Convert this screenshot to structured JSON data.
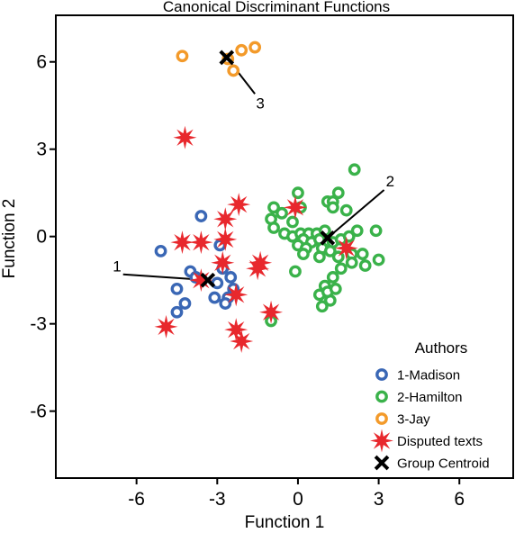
{
  "chart_data": {
    "type": "scatter",
    "title": "Canonical Discriminant Functions",
    "xlabel": "Function 1",
    "ylabel": "Function 2",
    "xlim": [
      -9,
      8
    ],
    "ylim": [
      -8.3,
      7.6
    ],
    "xticks": [
      -6,
      -3,
      0,
      3,
      6
    ],
    "yticks": [
      -6,
      -3,
      0,
      3,
      6
    ],
    "grid": false,
    "legend": {
      "title": "Authors",
      "position": "bottom-right",
      "entries": [
        {
          "key": "madison",
          "label": "1-Madison",
          "marker": "ring",
          "color": "#3a67b5"
        },
        {
          "key": "hamilton",
          "label": "2-Hamilton",
          "marker": "ring",
          "color": "#3ab24a"
        },
        {
          "key": "jay",
          "label": "3-Jay",
          "marker": "ring",
          "color": "#f39a2a"
        },
        {
          "key": "disputed",
          "label": "Disputed texts",
          "marker": "star",
          "color": "#e8282d"
        },
        {
          "key": "centroid",
          "label": "Group Centroid",
          "marker": "x",
          "color": "#000000"
        }
      ]
    },
    "series": [
      {
        "name": "1-Madison",
        "key": "madison",
        "marker": "ring",
        "color": "#3a67b5",
        "points": [
          [
            -5.1,
            -0.5
          ],
          [
            -4.0,
            -1.2
          ],
          [
            -3.8,
            -1.4
          ],
          [
            -3.6,
            0.7
          ],
          [
            -2.9,
            -0.3
          ],
          [
            -2.8,
            -1.1
          ],
          [
            -3.0,
            -1.6
          ],
          [
            -2.5,
            -1.4
          ],
          [
            -2.4,
            -1.8
          ],
          [
            -2.6,
            -2.1
          ],
          [
            -2.7,
            -2.3
          ],
          [
            -3.1,
            -2.1
          ],
          [
            -4.5,
            -1.8
          ],
          [
            -4.5,
            -2.6
          ],
          [
            -4.2,
            -2.3
          ]
        ]
      },
      {
        "name": "2-Hamilton",
        "key": "hamilton",
        "marker": "ring",
        "color": "#3ab24a",
        "points": [
          [
            -0.9,
            1.0
          ],
          [
            -0.6,
            0.8
          ],
          [
            0.0,
            1.5
          ],
          [
            0.1,
            1.0
          ],
          [
            1.1,
            1.2
          ],
          [
            1.3,
            1.2
          ],
          [
            1.5,
            1.5
          ],
          [
            2.1,
            2.3
          ],
          [
            1.3,
            1.0
          ],
          [
            1.8,
            0.9
          ],
          [
            -0.2,
            0.5
          ],
          [
            -1.0,
            0.6
          ],
          [
            -0.9,
            0.3
          ],
          [
            -0.5,
            0.1
          ],
          [
            -0.2,
            0.0
          ],
          [
            0.1,
            0.1
          ],
          [
            0.4,
            0.1
          ],
          [
            0.7,
            0.1
          ],
          [
            1.0,
            0.2
          ],
          [
            0.2,
            -0.1
          ],
          [
            0.5,
            -0.2
          ],
          [
            0.8,
            -0.1
          ],
          [
            1.3,
            -0.2
          ],
          [
            1.6,
            -0.1
          ],
          [
            1.9,
            0.0
          ],
          [
            2.2,
            0.2
          ],
          [
            2.9,
            0.2
          ],
          [
            0.0,
            -0.3
          ],
          [
            0.3,
            -0.4
          ],
          [
            0.9,
            -0.4
          ],
          [
            1.2,
            -0.5
          ],
          [
            1.5,
            -0.7
          ],
          [
            2.0,
            -0.6
          ],
          [
            2.4,
            -0.6
          ],
          [
            2.5,
            -1.0
          ],
          [
            3.0,
            -0.8
          ],
          [
            2.0,
            -0.9
          ],
          [
            1.6,
            -1.1
          ],
          [
            1.3,
            -1.4
          ],
          [
            1.0,
            -1.7
          ],
          [
            0.8,
            -2.0
          ],
          [
            0.9,
            -2.4
          ],
          [
            1.2,
            -2.2
          ],
          [
            1.1,
            -1.9
          ],
          [
            1.4,
            -1.8
          ],
          [
            -0.1,
            -1.2
          ],
          [
            -1.0,
            -2.9
          ],
          [
            0.2,
            -0.6
          ],
          [
            0.8,
            -0.7
          ]
        ]
      },
      {
        "name": "3-Jay",
        "key": "jay",
        "marker": "ring",
        "color": "#f39a2a",
        "points": [
          [
            -4.3,
            6.2
          ],
          [
            -2.6,
            6.1
          ],
          [
            -2.4,
            5.7
          ],
          [
            -2.1,
            6.4
          ],
          [
            -1.6,
            6.5
          ]
        ]
      },
      {
        "name": "Disputed texts",
        "key": "disputed",
        "marker": "star",
        "color": "#e8282d",
        "points": [
          [
            -4.2,
            3.4
          ],
          [
            -2.2,
            1.1
          ],
          [
            -2.7,
            0.6
          ],
          [
            -0.1,
            1.0
          ],
          [
            -4.3,
            -0.2
          ],
          [
            -3.6,
            -0.2
          ],
          [
            -2.7,
            -0.1
          ],
          [
            -2.8,
            -0.9
          ],
          [
            -1.5,
            -1.1
          ],
          [
            -1.4,
            -0.9
          ],
          [
            -3.6,
            -1.5
          ],
          [
            -2.3,
            -2.0
          ],
          [
            -1.0,
            -2.6
          ],
          [
            -4.9,
            -3.1
          ],
          [
            -2.3,
            -3.2
          ],
          [
            -2.1,
            -3.6
          ],
          [
            1.8,
            -0.4
          ]
        ]
      },
      {
        "name": "Group Centroid",
        "key": "centroid",
        "marker": "x",
        "color": "#000000",
        "points": [
          [
            -3.35,
            -1.5
          ],
          [
            1.1,
            -0.05
          ],
          [
            -2.65,
            6.15
          ]
        ]
      }
    ],
    "annotations": [
      {
        "text": "1",
        "at": [
          -6.5,
          -1.3
        ],
        "points_to": [
          -3.35,
          -1.5
        ],
        "anchor": "end"
      },
      {
        "text": "2",
        "at": [
          3.2,
          1.6
        ],
        "points_to": [
          1.1,
          -0.05
        ],
        "anchor": "start"
      },
      {
        "text": "3",
        "at": [
          -1.6,
          4.9
        ],
        "points_to": [
          -2.65,
          6.15
        ],
        "anchor": "middle"
      }
    ]
  }
}
